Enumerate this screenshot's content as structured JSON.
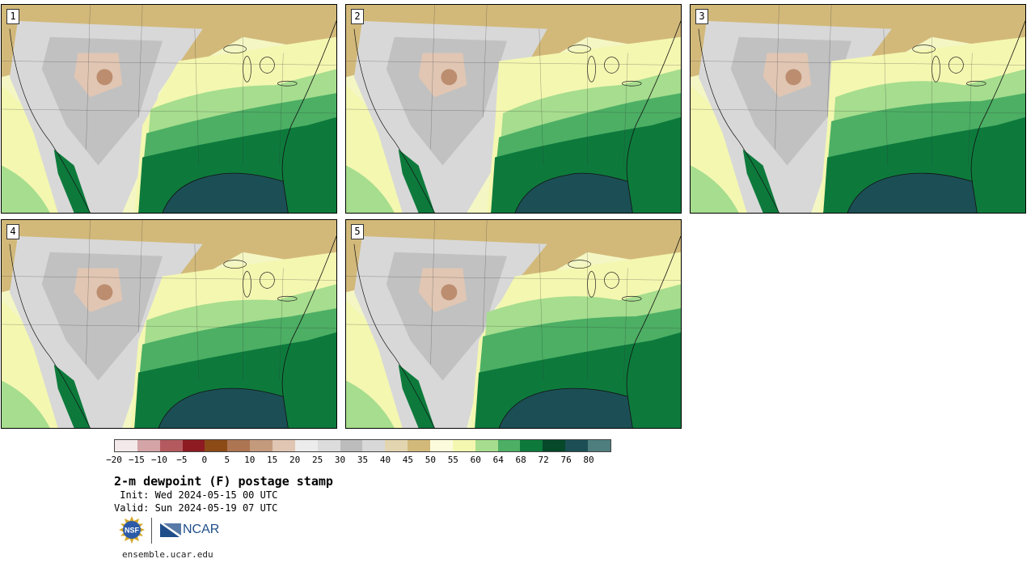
{
  "panels": [
    {
      "number": "1"
    },
    {
      "number": "2"
    },
    {
      "number": "3"
    },
    {
      "number": "4"
    },
    {
      "number": "5"
    }
  ],
  "colorbar": {
    "colors": [
      "#f3e9ea",
      "#d4a4a6",
      "#b45a5f",
      "#8e1a22",
      "#8c4a17",
      "#ad7552",
      "#c49a7d",
      "#e0c6b3",
      "#ececec",
      "#dcdcdc",
      "#bcbcbc",
      "#d8d8d8",
      "#e3d5b0",
      "#d2b97a",
      "#fcfcdc",
      "#f4f7b0",
      "#a6dd8e",
      "#4caf64",
      "#0d7a3c",
      "#05482a",
      "#1c4e55",
      "#4e7e7e"
    ],
    "ticks": [
      "−20",
      "−15",
      "−10",
      "−5",
      "0",
      "5",
      "10",
      "15",
      "20",
      "25",
      "30",
      "35",
      "40",
      "45",
      "50",
      "55",
      "60",
      "64",
      "68",
      "72",
      "76",
      "80"
    ]
  },
  "title": "2-m dewpoint (F) postage stamp",
  "init": " Init: Wed 2024-05-15 00 UTC",
  "valid": "Valid: Sun 2024-05-19 07 UTC",
  "footer": "ensemble.ucar.edu",
  "logos": {
    "nsf": "NSF",
    "ncar": "NCAR"
  }
}
